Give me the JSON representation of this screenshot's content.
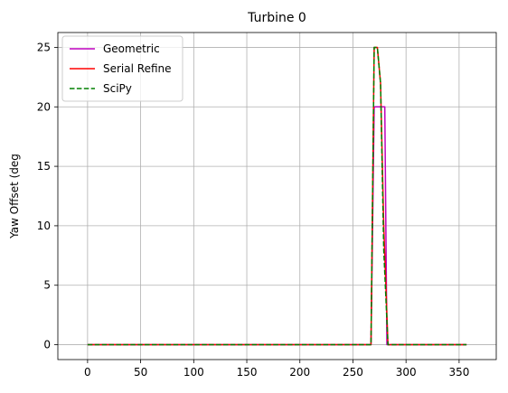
{
  "chart_data": {
    "type": "line",
    "title": "Turbine 0",
    "xlabel": "",
    "ylabel": "Yaw Offset (deg",
    "xlim": [
      -28,
      385
    ],
    "ylim": [
      -1.25,
      26.25
    ],
    "xticks": [
      0,
      50,
      100,
      150,
      200,
      250,
      300,
      350
    ],
    "yticks": [
      0,
      5,
      10,
      15,
      20,
      25
    ],
    "grid": true,
    "legend_position": "top-left",
    "series": [
      {
        "name": "Geometric",
        "color": "#bf00bf",
        "dash": "solid",
        "x": [
          0,
          267,
          270,
          278,
          279,
          280,
          282,
          357
        ],
        "y": [
          0,
          0,
          20,
          20,
          20,
          20,
          0,
          0
        ]
      },
      {
        "name": "Serial Refine",
        "color": "#ff0000",
        "dash": "solid",
        "x": [
          0,
          267,
          270,
          273,
          276,
          279,
          283,
          357
        ],
        "y": [
          0,
          0,
          25,
          25,
          22,
          10,
          0,
          0
        ]
      },
      {
        "name": "SciPy",
        "color": "#008000",
        "dash": "dashed",
        "x": [
          0,
          267,
          270,
          273,
          276,
          279,
          283,
          357
        ],
        "y": [
          0,
          0,
          25,
          25,
          22,
          8,
          0,
          0
        ]
      }
    ]
  }
}
